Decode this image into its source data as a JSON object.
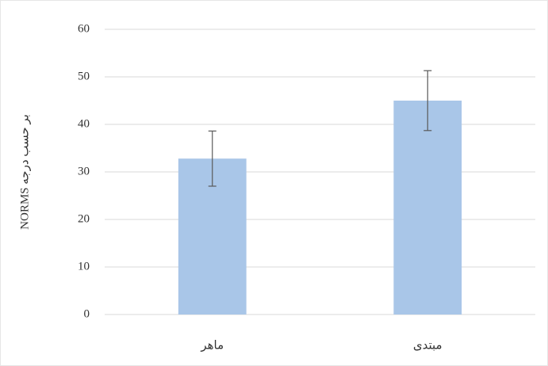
{
  "chart_data": {
    "type": "bar",
    "y_label": "NORMS بر حسب درجه",
    "categories": [
      "ماهر",
      "مبتدی"
    ],
    "values": [
      32.8,
      45
    ],
    "errors": [
      5.8,
      6.3
    ],
    "color": "#a9c6e8",
    "ylim": [
      0,
      60
    ],
    "yticks": [
      0,
      10,
      20,
      30,
      40,
      50,
      60
    ],
    "grid": true
  }
}
